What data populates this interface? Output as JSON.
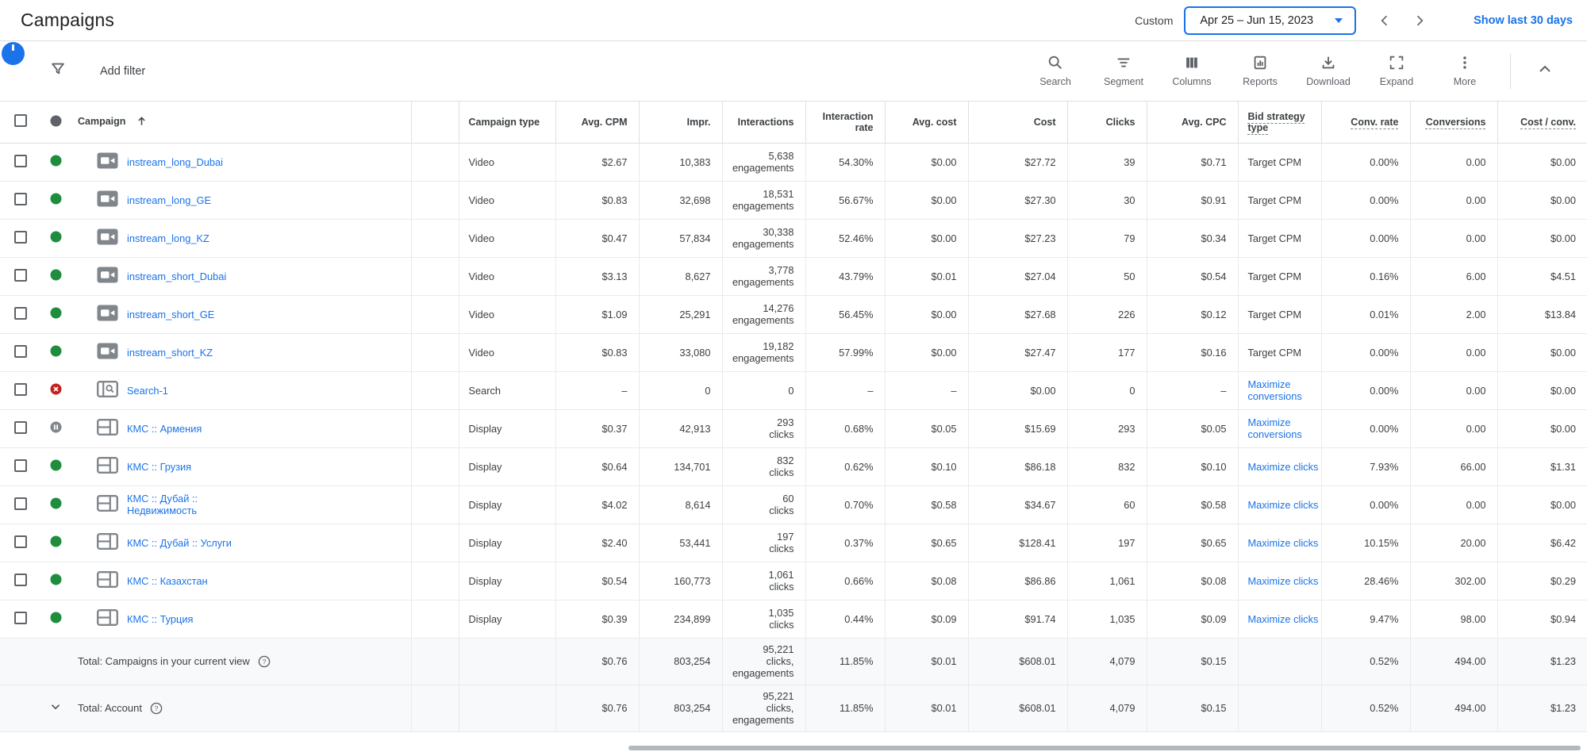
{
  "topbar": {
    "title": "Campaigns",
    "custom_label": "Custom",
    "date_range": "Apr 25 – Jun 15, 2023",
    "show_last_label": "Show last 30 days"
  },
  "toolbar": {
    "add_filter_label": "Add filter",
    "actions": [
      {
        "name": "search",
        "label": "Search"
      },
      {
        "name": "segment",
        "label": "Segment"
      },
      {
        "name": "columns",
        "label": "Columns"
      },
      {
        "name": "reports",
        "label": "Reports"
      },
      {
        "name": "download",
        "label": "Download"
      },
      {
        "name": "expand",
        "label": "Expand"
      },
      {
        "name": "more",
        "label": "More"
      }
    ]
  },
  "table": {
    "columns": {
      "campaign": "Campaign",
      "campaign_type": "Campaign type",
      "avg_cpm": "Avg. CPM",
      "impr": "Impr.",
      "interactions": "Interactions",
      "interaction_rate": "Interaction rate",
      "avg_cost": "Avg. cost",
      "cost": "Cost",
      "clicks": "Clicks",
      "avg_cpc": "Avg. CPC",
      "bid_strategy_type": "Bid strategy type",
      "conv_rate": "Conv. rate",
      "conversions": "Conversions",
      "cost_per_conv": "Cost / conv."
    },
    "rows": [
      {
        "status": "enabled",
        "icon": "video",
        "name": "instream_long_Dubai",
        "campaign_type": "Video",
        "avg_cpm": "$2.67",
        "impr": "10,383",
        "interactions": "5,638",
        "interactions_sub": "engagements",
        "interaction_rate": "54.30%",
        "avg_cost": "$0.00",
        "cost": "$27.72",
        "clicks": "39",
        "avg_cpc": "$0.71",
        "bid_strategy": "Target CPM",
        "bid_link": false,
        "conv_rate": "0.00%",
        "conversions": "0.00",
        "cost_conv": "$0.00"
      },
      {
        "status": "enabled",
        "icon": "video",
        "name": "instream_long_GE",
        "campaign_type": "Video",
        "avg_cpm": "$0.83",
        "impr": "32,698",
        "interactions": "18,531",
        "interactions_sub": "engagements",
        "interaction_rate": "56.67%",
        "avg_cost": "$0.00",
        "cost": "$27.30",
        "clicks": "30",
        "avg_cpc": "$0.91",
        "bid_strategy": "Target CPM",
        "bid_link": false,
        "conv_rate": "0.00%",
        "conversions": "0.00",
        "cost_conv": "$0.00"
      },
      {
        "status": "enabled",
        "icon": "video",
        "name": "instream_long_KZ",
        "campaign_type": "Video",
        "avg_cpm": "$0.47",
        "impr": "57,834",
        "interactions": "30,338",
        "interactions_sub": "engagements",
        "interaction_rate": "52.46%",
        "avg_cost": "$0.00",
        "cost": "$27.23",
        "clicks": "79",
        "avg_cpc": "$0.34",
        "bid_strategy": "Target CPM",
        "bid_link": false,
        "conv_rate": "0.00%",
        "conversions": "0.00",
        "cost_conv": "$0.00"
      },
      {
        "status": "enabled",
        "icon": "video",
        "name": "instream_short_Dubai",
        "campaign_type": "Video",
        "avg_cpm": "$3.13",
        "impr": "8,627",
        "interactions": "3,778",
        "interactions_sub": "engagements",
        "interaction_rate": "43.79%",
        "avg_cost": "$0.01",
        "cost": "$27.04",
        "clicks": "50",
        "avg_cpc": "$0.54",
        "bid_strategy": "Target CPM",
        "bid_link": false,
        "conv_rate": "0.16%",
        "conversions": "6.00",
        "cost_conv": "$4.51"
      },
      {
        "status": "enabled",
        "icon": "video",
        "name": "instream_short_GE",
        "campaign_type": "Video",
        "avg_cpm": "$1.09",
        "impr": "25,291",
        "interactions": "14,276",
        "interactions_sub": "engagements",
        "interaction_rate": "56.45%",
        "avg_cost": "$0.00",
        "cost": "$27.68",
        "clicks": "226",
        "avg_cpc": "$0.12",
        "bid_strategy": "Target CPM",
        "bid_link": false,
        "conv_rate": "0.01%",
        "conversions": "2.00",
        "cost_conv": "$13.84"
      },
      {
        "status": "enabled",
        "icon": "video",
        "name": "instream_short_KZ",
        "campaign_type": "Video",
        "avg_cpm": "$0.83",
        "impr": "33,080",
        "interactions": "19,182",
        "interactions_sub": "engagements",
        "interaction_rate": "57.99%",
        "avg_cost": "$0.00",
        "cost": "$27.47",
        "clicks": "177",
        "avg_cpc": "$0.16",
        "bid_strategy": "Target CPM",
        "bid_link": false,
        "conv_rate": "0.00%",
        "conversions": "0.00",
        "cost_conv": "$0.00"
      },
      {
        "status": "removed",
        "icon": "search",
        "name": "Search-1",
        "campaign_type": "Search",
        "avg_cpm": "–",
        "impr": "0",
        "interactions": "0",
        "interaction_rate": "–",
        "avg_cost": "–",
        "cost": "$0.00",
        "clicks": "0",
        "avg_cpc": "–",
        "bid_strategy": "Maximize conversions",
        "bid_link": true,
        "conv_rate": "0.00%",
        "conversions": "0.00",
        "cost_conv": "$0.00"
      },
      {
        "status": "paused",
        "icon": "display",
        "name": "КМС :: Армения",
        "campaign_type": "Display",
        "avg_cpm": "$0.37",
        "impr": "42,913",
        "interactions": "293",
        "interactions_sub": "clicks",
        "interaction_rate": "0.68%",
        "avg_cost": "$0.05",
        "cost": "$15.69",
        "clicks": "293",
        "avg_cpc": "$0.05",
        "bid_strategy": "Maximize conversions",
        "bid_link": true,
        "conv_rate": "0.00%",
        "conversions": "0.00",
        "cost_conv": "$0.00"
      },
      {
        "status": "enabled",
        "icon": "display",
        "name": "КМС :: Грузия",
        "campaign_type": "Display",
        "avg_cpm": "$0.64",
        "impr": "134,701",
        "interactions": "832",
        "interactions_sub": "clicks",
        "interaction_rate": "0.62%",
        "avg_cost": "$0.10",
        "cost": "$86.18",
        "clicks": "832",
        "avg_cpc": "$0.10",
        "bid_strategy": "Maximize clicks",
        "bid_link": true,
        "conv_rate": "7.93%",
        "conversions": "66.00",
        "cost_conv": "$1.31"
      },
      {
        "status": "enabled",
        "icon": "display",
        "name": "КМС :: Дубай ::",
        "name2": "Недвижимость",
        "campaign_type": "Display",
        "avg_cpm": "$4.02",
        "impr": "8,614",
        "interactions": "60",
        "interactions_sub": "clicks",
        "interaction_rate": "0.70%",
        "avg_cost": "$0.58",
        "cost": "$34.67",
        "clicks": "60",
        "avg_cpc": "$0.58",
        "bid_strategy": "Maximize clicks",
        "bid_link": true,
        "conv_rate": "0.00%",
        "conversions": "0.00",
        "cost_conv": "$0.00"
      },
      {
        "status": "enabled",
        "icon": "display",
        "name": "КМС :: Дубай :: Услуги",
        "campaign_type": "Display",
        "avg_cpm": "$2.40",
        "impr": "53,441",
        "interactions": "197",
        "interactions_sub": "clicks",
        "interaction_rate": "0.37%",
        "avg_cost": "$0.65",
        "cost": "$128.41",
        "clicks": "197",
        "avg_cpc": "$0.65",
        "bid_strategy": "Maximize clicks",
        "bid_link": true,
        "conv_rate": "10.15%",
        "conversions": "20.00",
        "cost_conv": "$6.42"
      },
      {
        "status": "enabled",
        "icon": "display",
        "name": "КМС :: Казахстан",
        "campaign_type": "Display",
        "avg_cpm": "$0.54",
        "impr": "160,773",
        "interactions": "1,061",
        "interactions_sub": "clicks",
        "interaction_rate": "0.66%",
        "avg_cost": "$0.08",
        "cost": "$86.86",
        "clicks": "1,061",
        "avg_cpc": "$0.08",
        "bid_strategy": "Maximize clicks",
        "bid_link": true,
        "conv_rate": "28.46%",
        "conversions": "302.00",
        "cost_conv": "$0.29"
      },
      {
        "status": "enabled",
        "icon": "display",
        "name": "КМС :: Турция",
        "campaign_type": "Display",
        "avg_cpm": "$0.39",
        "impr": "234,899",
        "interactions": "1,035",
        "interactions_sub": "clicks",
        "interaction_rate": "0.44%",
        "avg_cost": "$0.09",
        "cost": "$91.74",
        "clicks": "1,035",
        "avg_cpc": "$0.09",
        "bid_strategy": "Maximize clicks",
        "bid_link": true,
        "conv_rate": "9.47%",
        "conversions": "98.00",
        "cost_conv": "$0.94"
      }
    ],
    "totals": [
      {
        "label": "Total: Campaigns in your current view",
        "chevron": false,
        "avg_cpm": "$0.76",
        "impr": "803,254",
        "interactions": "95,221",
        "interactions_sub": "clicks,",
        "interactions_sub2": "engagements",
        "interaction_rate": "11.85%",
        "avg_cost": "$0.01",
        "cost": "$608.01",
        "clicks": "4,079",
        "avg_cpc": "$0.15",
        "bid_strategy": "",
        "conv_rate": "0.52%",
        "conversions": "494.00",
        "cost_conv": "$1.23"
      },
      {
        "label": "Total: Account",
        "chevron": true,
        "avg_cpm": "$0.76",
        "impr": "803,254",
        "interactions": "95,221",
        "interactions_sub": "clicks,",
        "interactions_sub2": "engagements",
        "interaction_rate": "11.85%",
        "avg_cost": "$0.01",
        "cost": "$608.01",
        "clicks": "4,079",
        "avg_cpc": "$0.15",
        "bid_strategy": "",
        "conv_rate": "0.52%",
        "conversions": "494.00",
        "cost_conv": "$1.23"
      }
    ]
  },
  "colors": {
    "accent": "#1a73e8",
    "enabled_green": "#1e8e3e",
    "removed_red": "#c5221f",
    "paused_gray": "#80868b"
  }
}
